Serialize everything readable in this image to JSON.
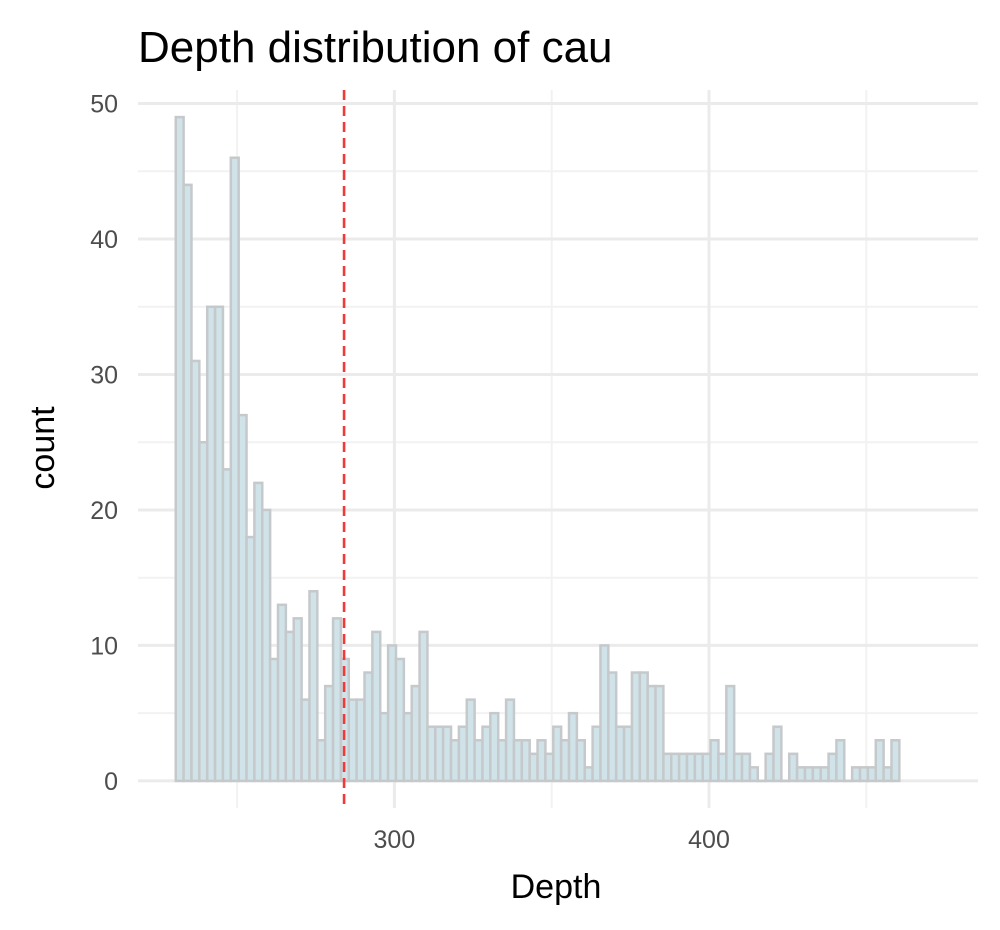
{
  "chart_data": {
    "type": "bar",
    "title": "Depth distribution of cau",
    "xlabel": "Depth",
    "ylabel": "count",
    "xlim": [
      218.5,
      485.5
    ],
    "ylim": [
      -2,
      51
    ],
    "x_ticks": [
      300,
      400
    ],
    "x_minor_ticks": [
      250,
      350,
      450
    ],
    "y_ticks": [
      0,
      10,
      20,
      30,
      40,
      50
    ],
    "y_minor_ticks": [
      5,
      15,
      25,
      35,
      45
    ],
    "grid": true,
    "legend": "none",
    "bin_start": 230.5,
    "bin_width": 2.5,
    "values": [
      49,
      44,
      31,
      25,
      35,
      35,
      23,
      46,
      27,
      18,
      22,
      20,
      9,
      13,
      11,
      12,
      6,
      14,
      3,
      7,
      12,
      9,
      6,
      6,
      8,
      11,
      5,
      10,
      9,
      5,
      7,
      11,
      4,
      4,
      4,
      3,
      4,
      6,
      3,
      4,
      5,
      3,
      6,
      3,
      3,
      2,
      3,
      2,
      4,
      3,
      5,
      3,
      1,
      4,
      10,
      8,
      4,
      4,
      8,
      8,
      7,
      7,
      2,
      2,
      2,
      2,
      2,
      2,
      3,
      2,
      7,
      2,
      2,
      1,
      0,
      2,
      4,
      0,
      2,
      1,
      1,
      1,
      1,
      2,
      3,
      0,
      1,
      1,
      1,
      3,
      1,
      3
    ],
    "vline": 284,
    "colors": {
      "bar_fill": "#cfe3e8",
      "bar_outline": "#c6c9cb",
      "vline": "#f03a3a",
      "grid": "#ebebeb"
    }
  }
}
